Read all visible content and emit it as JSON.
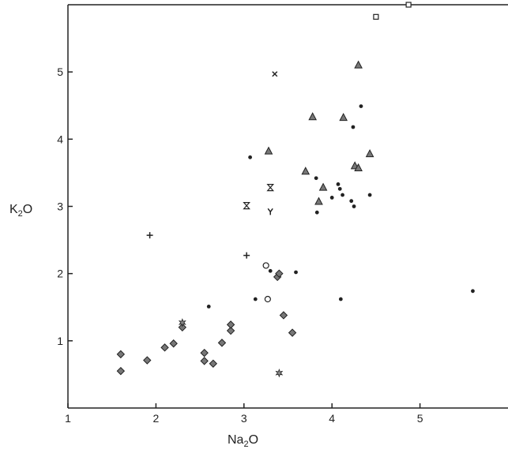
{
  "chart_data": {
    "type": "scatter",
    "xlabel": "Na2O",
    "ylabel": "K2O",
    "xlabel_parts": {
      "main": "Na",
      "sub": "2",
      "tail": "O"
    },
    "ylabel_parts": {
      "main": "K",
      "sub": "2",
      "tail": "O"
    },
    "xlim": [
      1,
      6
    ],
    "ylim": [
      0,
      6
    ],
    "x_ticks": [
      1,
      2,
      3,
      4,
      5
    ],
    "y_ticks": [
      1,
      2,
      3,
      4,
      5
    ],
    "grid": false,
    "series": [
      {
        "marker": "dot",
        "points": [
          [
            3.07,
            3.73
          ],
          [
            3.82,
            3.42
          ],
          [
            3.83,
            2.91
          ],
          [
            4.0,
            3.13
          ],
          [
            4.07,
            3.33
          ],
          [
            4.09,
            3.26
          ],
          [
            4.12,
            3.17
          ],
          [
            4.22,
            3.08
          ],
          [
            4.25,
            3.0
          ],
          [
            4.24,
            4.18
          ],
          [
            4.33,
            4.49
          ],
          [
            4.43,
            3.17
          ],
          [
            2.6,
            1.51
          ],
          [
            3.13,
            1.62
          ],
          [
            3.3,
            2.04
          ],
          [
            3.59,
            2.02
          ],
          [
            4.1,
            1.62
          ],
          [
            5.6,
            1.74
          ]
        ]
      },
      {
        "marker": "diamond",
        "points": [
          [
            1.6,
            0.8
          ],
          [
            1.6,
            0.55
          ],
          [
            1.9,
            0.71
          ],
          [
            2.1,
            0.9
          ],
          [
            2.2,
            0.96
          ],
          [
            2.3,
            1.2
          ],
          [
            2.55,
            0.82
          ],
          [
            2.55,
            0.7
          ],
          [
            2.65,
            0.66
          ],
          [
            2.75,
            0.97
          ],
          [
            2.85,
            1.15
          ],
          [
            2.85,
            1.24
          ],
          [
            3.38,
            1.95
          ],
          [
            3.4,
            2.0
          ],
          [
            3.45,
            1.38
          ],
          [
            3.55,
            1.12
          ]
        ]
      },
      {
        "marker": "triangle",
        "points": [
          [
            3.28,
            3.82
          ],
          [
            3.7,
            3.52
          ],
          [
            3.78,
            4.33
          ],
          [
            3.85,
            3.07
          ],
          [
            3.9,
            3.28
          ],
          [
            4.13,
            4.32
          ],
          [
            4.26,
            3.6
          ],
          [
            4.3,
            3.57
          ],
          [
            4.43,
            3.78
          ],
          [
            4.3,
            5.1
          ]
        ]
      },
      {
        "marker": "square",
        "points": [
          [
            4.5,
            5.82
          ],
          [
            4.87,
            6.0
          ]
        ]
      },
      {
        "marker": "circle",
        "points": [
          [
            3.25,
            2.12
          ],
          [
            3.27,
            1.62
          ]
        ]
      },
      {
        "marker": "plus",
        "points": [
          [
            1.93,
            2.57
          ],
          [
            3.03,
            2.27
          ]
        ]
      },
      {
        "marker": "cross",
        "points": [
          [
            3.35,
            4.97
          ]
        ]
      },
      {
        "marker": "hourglass",
        "points": [
          [
            3.03,
            3.01
          ],
          [
            3.3,
            3.28
          ]
        ]
      },
      {
        "marker": "y-mark",
        "points": [
          [
            3.3,
            2.92
          ]
        ]
      },
      {
        "marker": "star",
        "points": [
          [
            2.3,
            1.27
          ],
          [
            3.4,
            0.52
          ]
        ]
      }
    ]
  }
}
